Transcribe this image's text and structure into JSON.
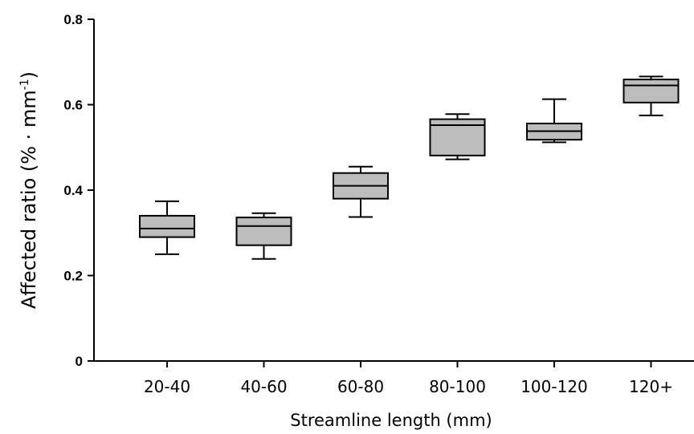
{
  "chart_data": {
    "type": "box",
    "title": "",
    "xlabel": "Streamline length (mm)",
    "ylabel": {
      "prefix": "Affected ratio  (%  ·  mm",
      "superscript": "-1",
      "suffix": ")"
    },
    "ylim": [
      0,
      0.8
    ],
    "yticks": [
      "0",
      "0.2",
      "0.4",
      "0.6",
      "0.8"
    ],
    "grid": false,
    "legend": "none",
    "box_fill": "#bdbdbd",
    "line_color": "#000000",
    "categories": [
      "20-40",
      "40-60",
      "60-80",
      "80-100",
      "100-120",
      "120+"
    ],
    "boxes": [
      {
        "category": "20-40",
        "whisker_low": 0.25,
        "q1": 0.29,
        "median": 0.31,
        "q3": 0.34,
        "whisker_high": 0.374
      },
      {
        "category": "40-60",
        "whisker_low": 0.239,
        "q1": 0.271,
        "median": 0.316,
        "q3": 0.336,
        "whisker_high": 0.346
      },
      {
        "category": "60-80",
        "whisker_low": 0.337,
        "q1": 0.38,
        "median": 0.41,
        "q3": 0.44,
        "whisker_high": 0.455
      },
      {
        "category": "80-100",
        "whisker_low": 0.472,
        "q1": 0.481,
        "median": 0.552,
        "q3": 0.566,
        "whisker_high": 0.578
      },
      {
        "category": "100-120",
        "whisker_low": 0.512,
        "q1": 0.518,
        "median": 0.538,
        "q3": 0.556,
        "whisker_high": 0.613
      },
      {
        "category": "120+",
        "whisker_low": 0.575,
        "q1": 0.605,
        "median": 0.645,
        "q3": 0.659,
        "whisker_high": 0.666
      }
    ]
  }
}
